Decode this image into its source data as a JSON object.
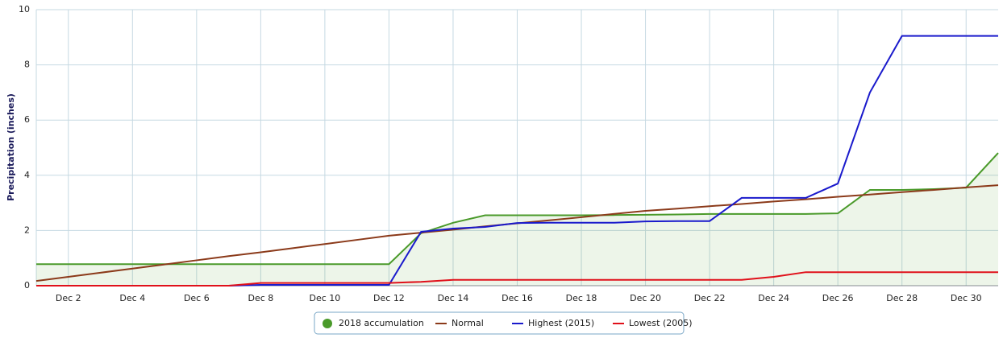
{
  "chart_data": {
    "type": "line",
    "y_label": "Precipitation (inches)",
    "x": [
      1,
      2,
      3,
      4,
      5,
      6,
      7,
      8,
      9,
      10,
      11,
      12,
      13,
      14,
      15,
      16,
      17,
      18,
      19,
      20,
      21,
      22,
      23,
      24,
      25,
      26,
      27,
      28,
      29,
      30,
      31
    ],
    "xlim": [
      1,
      31
    ],
    "xticks": [
      {
        "value": 2,
        "label": "Dec 2"
      },
      {
        "value": 4,
        "label": "Dec 4"
      },
      {
        "value": 6,
        "label": "Dec 6"
      },
      {
        "value": 8,
        "label": "Dec 8"
      },
      {
        "value": 10,
        "label": "Dec 10"
      },
      {
        "value": 12,
        "label": "Dec 12"
      },
      {
        "value": 14,
        "label": "Dec 14"
      },
      {
        "value": 16,
        "label": "Dec 16"
      },
      {
        "value": 18,
        "label": "Dec 18"
      },
      {
        "value": 20,
        "label": "Dec 20"
      },
      {
        "value": 22,
        "label": "Dec 22"
      },
      {
        "value": 24,
        "label": "Dec 24"
      },
      {
        "value": 26,
        "label": "Dec 26"
      },
      {
        "value": 28,
        "label": "Dec 28"
      },
      {
        "value": 30,
        "label": "Dec 30"
      }
    ],
    "ylim": [
      0,
      10
    ],
    "yticks": [
      0,
      2,
      4,
      6,
      8,
      10
    ],
    "grid": true,
    "legend": "bottom",
    "series": [
      {
        "name": "2018 accumulation",
        "color": "#4a9a2a",
        "area": true,
        "values": [
          0.78,
          0.78,
          0.78,
          0.78,
          0.78,
          0.78,
          0.78,
          0.78,
          0.78,
          0.78,
          0.78,
          0.78,
          1.9,
          2.28,
          2.55,
          2.55,
          2.55,
          2.55,
          2.56,
          2.57,
          2.58,
          2.6,
          2.6,
          2.6,
          2.6,
          2.62,
          3.47,
          3.47,
          3.5,
          3.55,
          4.81
        ]
      },
      {
        "name": "Normal",
        "color": "#8b3a1a",
        "values": [
          0.17,
          0.32,
          0.47,
          0.62,
          0.77,
          0.92,
          1.07,
          1.21,
          1.36,
          1.51,
          1.66,
          1.81,
          1.92,
          2.03,
          2.15,
          2.26,
          2.37,
          2.48,
          2.6,
          2.71,
          2.79,
          2.88,
          2.96,
          3.05,
          3.13,
          3.22,
          3.3,
          3.39,
          3.47,
          3.56,
          3.64
        ]
      },
      {
        "name": "Highest (2015)",
        "color": "#1a1acc",
        "values": [
          0,
          0,
          0,
          0,
          0,
          0,
          0,
          0.03,
          0.03,
          0.03,
          0.03,
          0.03,
          1.95,
          2.07,
          2.13,
          2.27,
          2.28,
          2.28,
          2.28,
          2.33,
          2.34,
          2.34,
          3.18,
          3.18,
          3.18,
          3.7,
          7.0,
          9.05,
          9.05,
          9.05,
          9.05
        ]
      },
      {
        "name": "Lowest (2005)",
        "color": "#e0101a",
        "values": [
          0,
          0,
          0,
          0,
          0,
          0,
          0,
          0.1,
          0.1,
          0.1,
          0.1,
          0.1,
          0.14,
          0.21,
          0.21,
          0.21,
          0.21,
          0.21,
          0.21,
          0.21,
          0.21,
          0.21,
          0.21,
          0.32,
          0.49,
          0.49,
          0.49,
          0.49,
          0.49,
          0.49,
          0.49
        ]
      }
    ]
  }
}
